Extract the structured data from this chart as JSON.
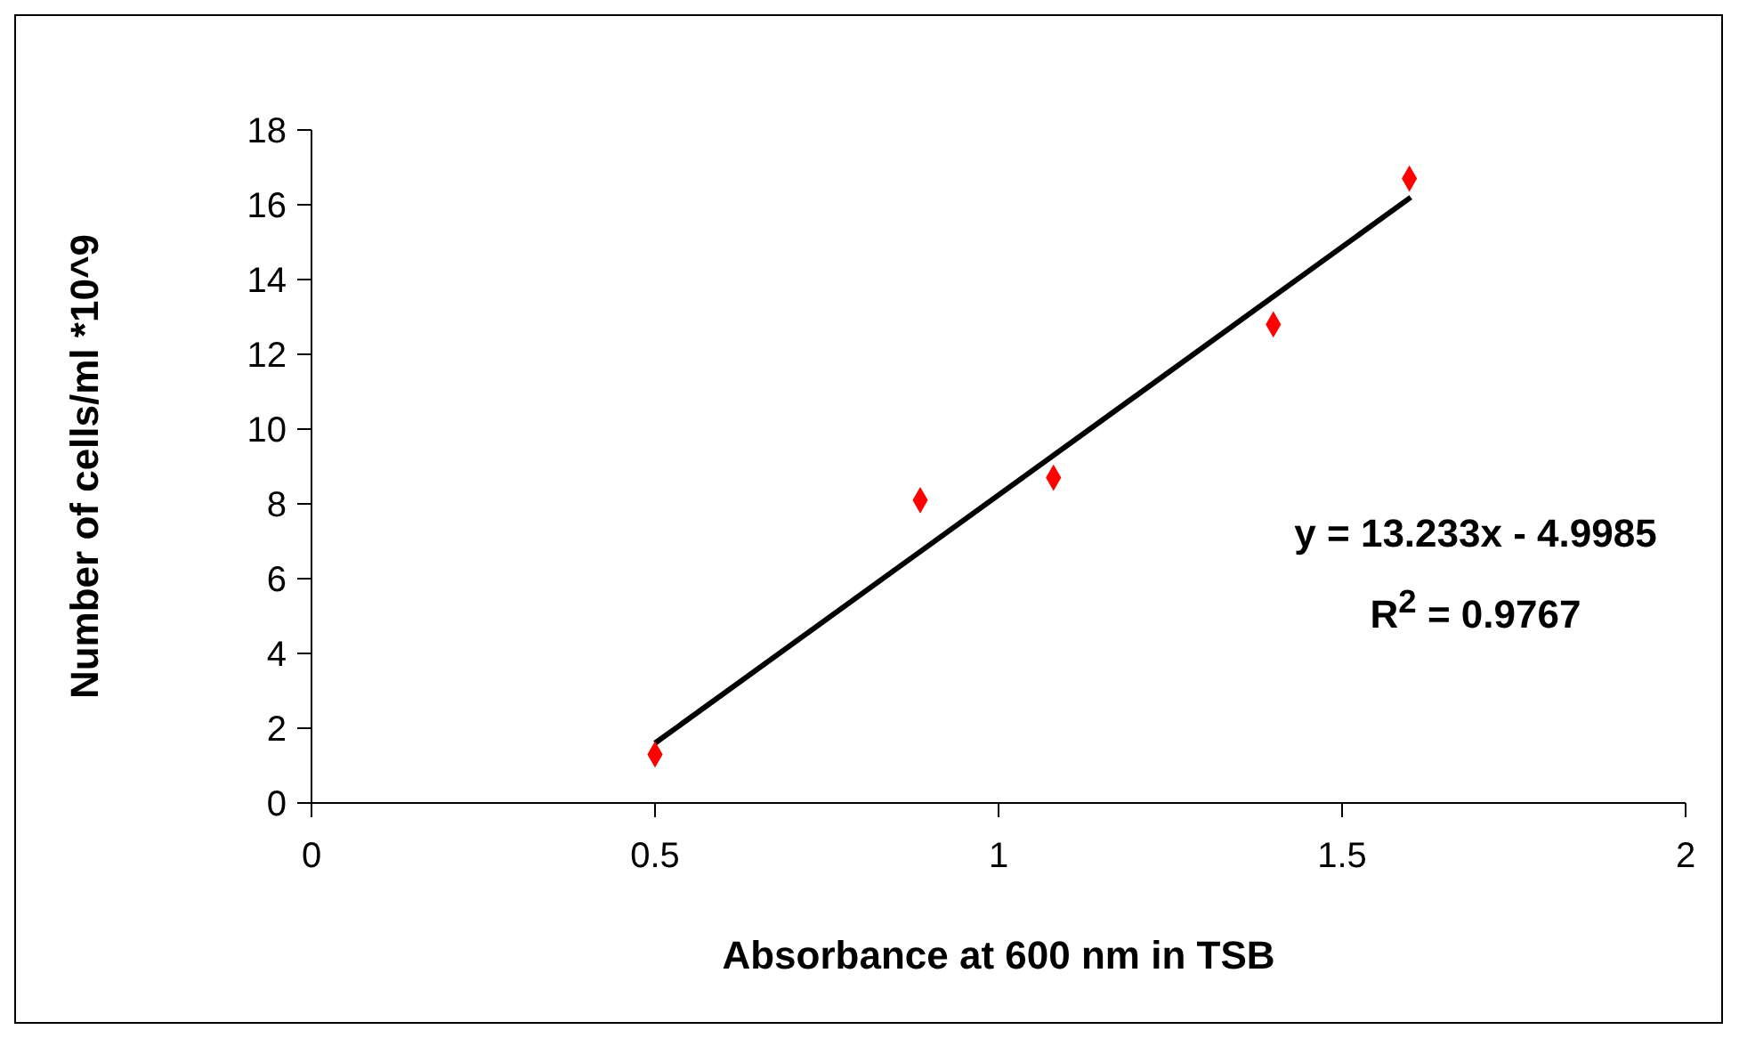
{
  "chart_data": {
    "type": "scatter",
    "xlabel": "Absorbance at 600 nm in TSB",
    "ylabel": "Number of cells/ml *10^9",
    "xlim": [
      0,
      2
    ],
    "xticks": [
      0,
      0.5,
      1,
      1.5,
      2
    ],
    "ylim": [
      0,
      18
    ],
    "yticks": [
      0,
      2,
      4,
      6,
      8,
      10,
      12,
      14,
      16,
      18
    ],
    "grid": false,
    "legend": false,
    "marker": "diamond",
    "series": [
      {
        "color": "#ff0000",
        "x": [
          0.5,
          0.886,
          1.08,
          1.4,
          1.598
        ],
        "values": [
          1.3,
          8.1,
          8.7,
          12.8,
          16.7
        ]
      },
      {
        "type": "line",
        "color": "#000000",
        "marker": "none",
        "line_style": "solid",
        "x": [
          0.5,
          1.6
        ],
        "values": [
          1.6,
          16.2
        ]
      }
    ],
    "annotations": [
      "y = 13.233x - 4.9985",
      "R$^{2}$ = 0.9767"
    ]
  }
}
